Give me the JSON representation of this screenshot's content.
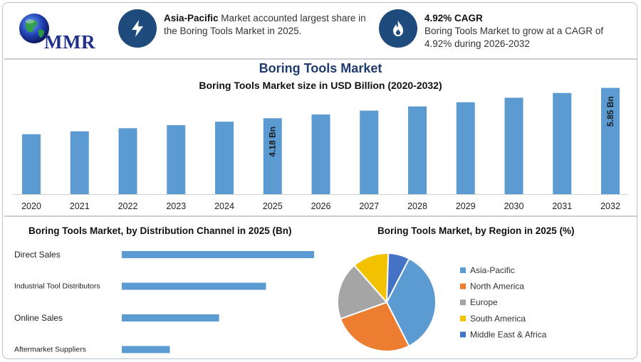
{
  "header": {
    "logo_text": "MMR",
    "info1": {
      "strong": "Asia-Pacific",
      "text": " Market accounted largest share in the Boring Tools Market in 2025.",
      "icon": "bolt-icon"
    },
    "info2": {
      "strong": "4.92% CAGR",
      "text": "Boring Tools Market to grow at a CAGR of 4.92% during 2026-2032",
      "icon": "flame-icon"
    }
  },
  "colors": {
    "bar": "#5b9bd1",
    "badge": "#1e4a7c",
    "title": "#1f3b70"
  },
  "chart_data": [
    {
      "type": "bar",
      "title": "Boring Tools Market",
      "subtitle": "Boring Tools Market size in USD Billion (2020-2032)",
      "categories": [
        "2020",
        "2021",
        "2022",
        "2023",
        "2024",
        "2025",
        "2026",
        "2027",
        "2028",
        "2029",
        "2030",
        "2031",
        "2032"
      ],
      "values": [
        3.3,
        3.46,
        3.63,
        3.8,
        3.99,
        4.18,
        4.39,
        4.6,
        4.83,
        5.06,
        5.31,
        5.57,
        5.85
      ],
      "data_labels": {
        "5": "4.18 Bn",
        "12": "5.85 Bn"
      },
      "ylim": [
        0,
        6.5
      ]
    },
    {
      "type": "bar",
      "orientation": "horizontal",
      "title": "Boring Tools Market, by Distribution Channel in 2025 (Bn)",
      "categories": [
        "Direct Sales",
        "Industrial Tool Distributors",
        "Online Sales",
        "Aftermarket Suppliers"
      ],
      "values": [
        1.68,
        1.26,
        0.85,
        0.42
      ],
      "xlim": [
        0,
        1.68
      ]
    },
    {
      "type": "pie",
      "title": "Boring Tools Market, by Region in 2025 (%)",
      "labels": [
        "Asia-Pacific",
        "North America",
        "Europe",
        "South America",
        "Middle East & Africa"
      ],
      "values": [
        35,
        27,
        19,
        12,
        7
      ],
      "colors": [
        "#5b9bd1",
        "#ed7d31",
        "#a5a5a5",
        "#f2c200",
        "#4472c4"
      ],
      "legend": "right"
    }
  ]
}
